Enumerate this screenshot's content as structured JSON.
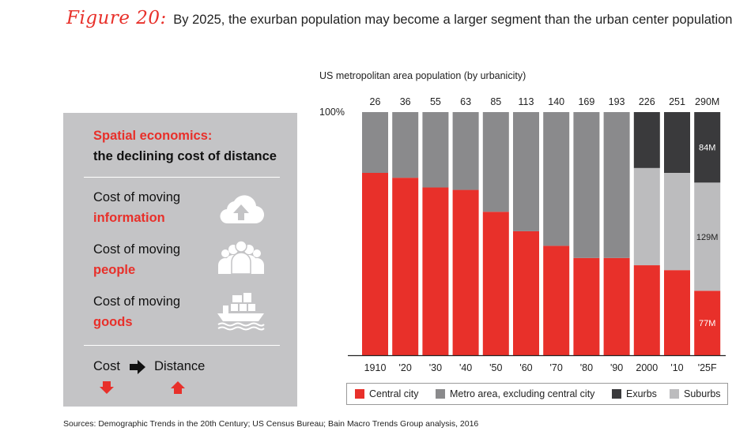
{
  "figure": {
    "label": "Figure 20:",
    "title": "By 2025, the exurban population may become a larger segment than the urban center population"
  },
  "panel": {
    "heading_line1": "Spatial economics:",
    "heading_line2": "the declining cost of distance",
    "rows": [
      {
        "prefix": "Cost of moving",
        "highlight": "information",
        "icon": "cloud-upload-icon"
      },
      {
        "prefix": "Cost of moving",
        "highlight": "people",
        "icon": "people-group-icon"
      },
      {
        "prefix": "Cost of moving",
        "highlight": "goods",
        "icon": "cargo-ship-icon"
      }
    ],
    "cost_label": "Cost",
    "distance_label": "Distance",
    "colors": {
      "background": "#c4c4c6",
      "accent": "#e8302a"
    }
  },
  "chart_data": {
    "type": "bar",
    "stacked": true,
    "normalized": true,
    "subtitle": "US metropolitan area population (by urbanicity)",
    "y_top_label": "100%",
    "categories": [
      "1910",
      "'20",
      "'30",
      "'40",
      "'50",
      "'60",
      "'70",
      "'80",
      "'90",
      "2000",
      "'10",
      "'25F"
    ],
    "totals": [
      "26",
      "36",
      "55",
      "63",
      "85",
      "113",
      "140",
      "169",
      "193",
      "226",
      "251",
      "290M"
    ],
    "series": [
      {
        "name": "Central city",
        "color": "#e8302a",
        "values": [
          75,
          73,
          69,
          68,
          59,
          51,
          45,
          40,
          40,
          37,
          35,
          26.5
        ]
      },
      {
        "name": "Suburbs",
        "color": "#bcbcbe",
        "values": [
          0,
          0,
          0,
          0,
          0,
          0,
          0,
          0,
          0,
          40,
          40,
          44.5
        ]
      },
      {
        "name": "Exurbs",
        "color": "#3a3a3c",
        "values": [
          0,
          0,
          0,
          0,
          0,
          0,
          0,
          0,
          0,
          23,
          25,
          29
        ]
      },
      {
        "name": "Metro area, excluding central city",
        "color": "#8a8a8c",
        "values": [
          25,
          27,
          31,
          32,
          41,
          49,
          55,
          60,
          60,
          0,
          0,
          0
        ]
      }
    ],
    "segment_labels": [
      {
        "category": "'25F",
        "series": "Exurbs",
        "text": "84M"
      },
      {
        "category": "'25F",
        "series": "Suburbs",
        "text": "129M"
      },
      {
        "category": "'25F",
        "series": "Central city",
        "text": "77M"
      }
    ],
    "legend": [
      {
        "name": "Central city",
        "color": "#e8302a"
      },
      {
        "name": "Metro area, excluding central city",
        "color": "#8a8a8c"
      },
      {
        "name": "Exurbs",
        "color": "#3a3a3c"
      },
      {
        "name": "Suburbs",
        "color": "#bcbcbe"
      }
    ],
    "ylim": [
      0,
      100
    ]
  },
  "source": "Sources: Demographic Trends in the 20th Century; US Census Bureau; Bain Macro Trends Group analysis, 2016"
}
